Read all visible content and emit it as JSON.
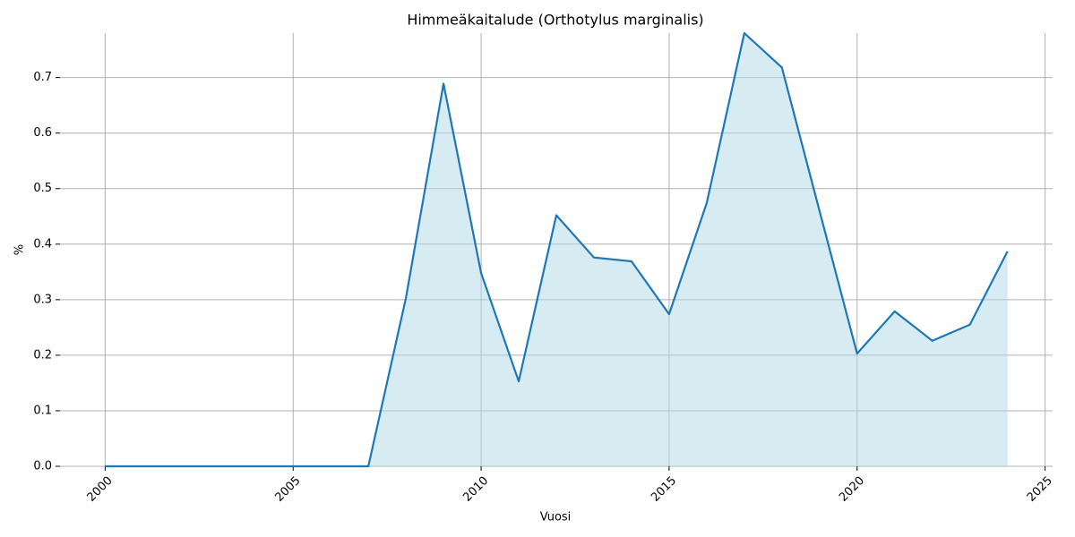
{
  "chart_data": {
    "type": "area",
    "title": "Himmeäkaitalude (Orthotylus marginalis)",
    "xlabel": "Vuosi",
    "ylabel": "%",
    "x": [
      2000,
      2001,
      2002,
      2003,
      2004,
      2005,
      2006,
      2007,
      2008,
      2009,
      2010,
      2011,
      2012,
      2013,
      2014,
      2015,
      2016,
      2017,
      2018,
      2019,
      2020,
      2021,
      2022,
      2023,
      2024
    ],
    "series": [
      {
        "color": "#1f77b4",
        "fill": "#add8e6",
        "values": [
          0,
          0,
          0,
          0,
          0,
          0,
          0,
          0,
          0.303,
          0.689,
          0.348,
          0.153,
          0.452,
          0.376,
          0.369,
          0.274,
          0.474,
          0.78,
          0.718,
          0.46,
          0.203,
          0.279,
          0.226,
          0.255,
          0.387
        ]
      }
    ],
    "xlim": [
      1998.8,
      2025.2
    ],
    "ylim": [
      0,
      0.78
    ],
    "xticks": [
      2000,
      2005,
      2010,
      2015,
      2020,
      2025
    ],
    "yticks": [
      {
        "value": 0,
        "label": "0.0"
      },
      0.1,
      0.2,
      0.3,
      0.4,
      0.5,
      0.6,
      0.7
    ],
    "grid": true
  }
}
